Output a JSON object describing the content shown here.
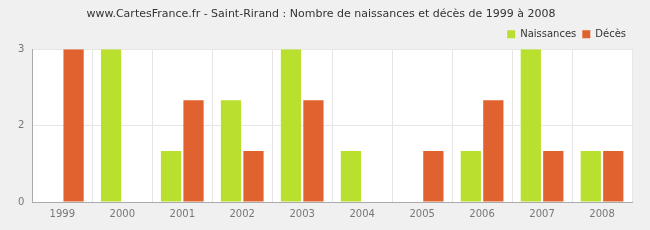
{
  "chart_data": {
    "type": "bar",
    "title": "www.CartesFrance.fr - Saint-Rirand : Nombre de naissances et décès de 1999 à 2008",
    "categories": [
      "1999",
      "2000",
      "2001",
      "2002",
      "2003",
      "2004",
      "2005",
      "2006",
      "2007",
      "2008"
    ],
    "series": [
      {
        "name": "Naissances",
        "color": "#b9e02e",
        "values": [
          0,
          3,
          1,
          2,
          3,
          1,
          0,
          1,
          3,
          1
        ]
      },
      {
        "name": "Décès",
        "color": "#e0622e",
        "values": [
          3,
          0,
          2,
          1,
          2,
          0,
          1,
          2,
          1,
          1
        ]
      }
    ],
    "ylim": [
      0,
      3
    ],
    "yticks": [
      0,
      {
        "value": 1.5,
        "label": "2"
      },
      3
    ],
    "grid": true,
    "legend": "top-right"
  }
}
